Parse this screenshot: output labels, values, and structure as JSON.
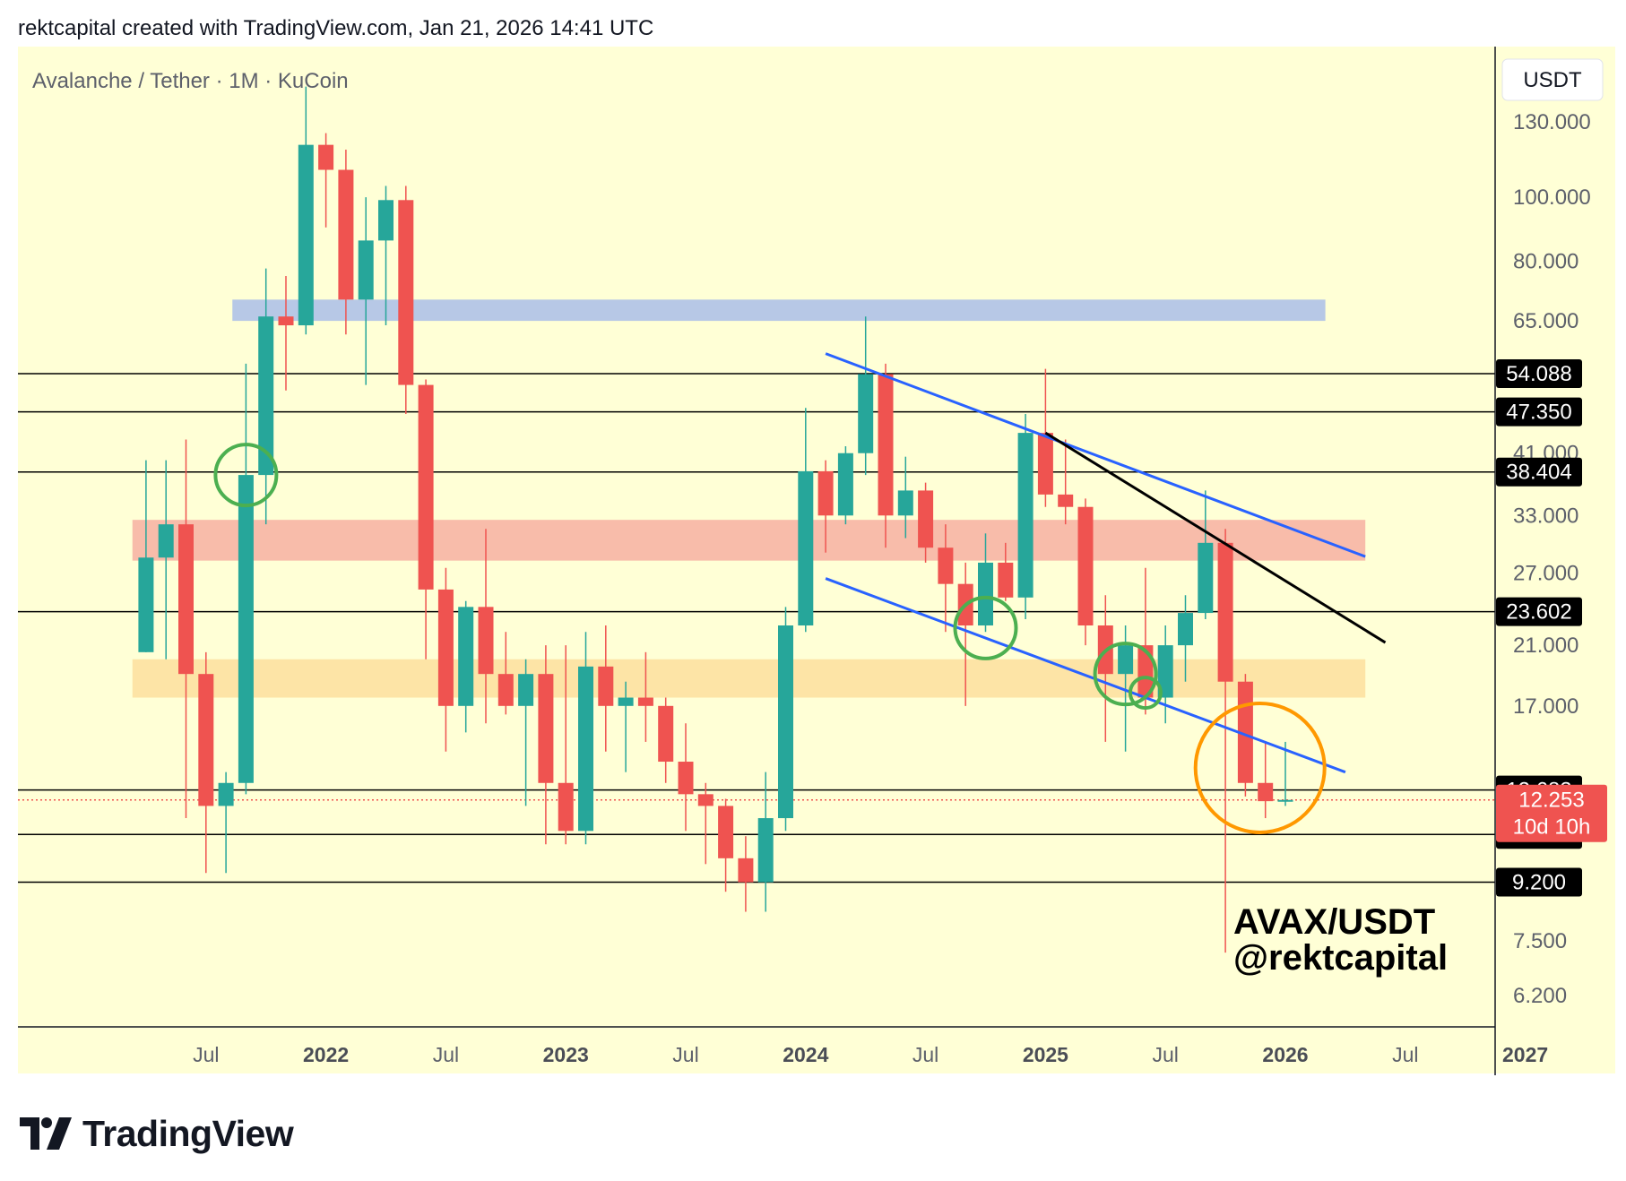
{
  "caption": "rektcapital created with TradingView.com, Jan 21, 2026 14:41 UTC",
  "brand": "TradingView",
  "chart_data": {
    "type": "candlestick",
    "title": "Avalanche / Tether · 1M · KuCoin",
    "currency_label": "USDT",
    "y_scale": "log",
    "ylim": [
      5.5,
      160
    ],
    "y_ticks": [
      "130.000",
      "100.000",
      "80.000",
      "65.000",
      "41.000",
      "33.000",
      "27.000",
      "21.000",
      "17.000",
      "7.500",
      "6.200"
    ],
    "x_ticks": [
      {
        "label": "Jul",
        "bold": false,
        "month": "2021-07"
      },
      {
        "label": "2022",
        "bold": true,
        "month": "2022-01"
      },
      {
        "label": "Jul",
        "bold": false,
        "month": "2022-07"
      },
      {
        "label": "2023",
        "bold": true,
        "month": "2023-01"
      },
      {
        "label": "Jul",
        "bold": false,
        "month": "2023-07"
      },
      {
        "label": "2024",
        "bold": true,
        "month": "2024-01"
      },
      {
        "label": "Jul",
        "bold": false,
        "month": "2024-07"
      },
      {
        "label": "2025",
        "bold": true,
        "month": "2025-01"
      },
      {
        "label": "Jul",
        "bold": false,
        "month": "2025-07"
      },
      {
        "label": "2026",
        "bold": true,
        "month": "2026-01"
      },
      {
        "label": "Jul",
        "bold": false,
        "month": "2026-07"
      },
      {
        "label": "2027",
        "bold": true,
        "month": "2027-01"
      }
    ],
    "candles": [
      {
        "month": "2021-04",
        "open": 20.5,
        "high": 40,
        "low": 20.5,
        "close": 28.5
      },
      {
        "month": "2021-05",
        "open": 28.5,
        "high": 40,
        "low": 20,
        "close": 32
      },
      {
        "month": "2021-06",
        "open": 32,
        "high": 43,
        "low": 11.5,
        "close": 19
      },
      {
        "month": "2021-07",
        "open": 19,
        "high": 20.5,
        "low": 9.5,
        "close": 12
      },
      {
        "month": "2021-08",
        "open": 12,
        "high": 13.5,
        "low": 9.5,
        "close": 13
      },
      {
        "month": "2021-09",
        "open": 13,
        "high": 56,
        "low": 12.5,
        "close": 38
      },
      {
        "month": "2021-10",
        "open": 38,
        "high": 78,
        "low": 32,
        "close": 66
      },
      {
        "month": "2021-11",
        "open": 66,
        "high": 76,
        "low": 51,
        "close": 64
      },
      {
        "month": "2021-12",
        "open": 64,
        "high": 147,
        "low": 62,
        "close": 120
      },
      {
        "month": "2022-01",
        "open": 120,
        "high": 125,
        "low": 90,
        "close": 110
      },
      {
        "month": "2022-02",
        "open": 110,
        "high": 118,
        "low": 62,
        "close": 70
      },
      {
        "month": "2022-03",
        "open": 70,
        "high": 100,
        "low": 52,
        "close": 86
      },
      {
        "month": "2022-04",
        "open": 86,
        "high": 104,
        "low": 64,
        "close": 99
      },
      {
        "month": "2022-05",
        "open": 99,
        "high": 104,
        "low": 47,
        "close": 52
      },
      {
        "month": "2022-06",
        "open": 52,
        "high": 53,
        "low": 20,
        "close": 25.5
      },
      {
        "month": "2022-07",
        "open": 25.5,
        "high": 27.5,
        "low": 14.5,
        "close": 17
      },
      {
        "month": "2022-08",
        "open": 17,
        "high": 24.5,
        "low": 15.5,
        "close": 24
      },
      {
        "month": "2022-09",
        "open": 24,
        "high": 31.5,
        "low": 16,
        "close": 19
      },
      {
        "month": "2022-10",
        "open": 19,
        "high": 22,
        "low": 16.5,
        "close": 17
      },
      {
        "month": "2022-11",
        "open": 17,
        "high": 20,
        "low": 12,
        "close": 19
      },
      {
        "month": "2022-12",
        "open": 19,
        "high": 21,
        "low": 10.5,
        "close": 13
      },
      {
        "month": "2023-01",
        "open": 13,
        "high": 21,
        "low": 10.5,
        "close": 11
      },
      {
        "month": "2023-02",
        "open": 11,
        "high": 22,
        "low": 10.5,
        "close": 19.5
      },
      {
        "month": "2023-03",
        "open": 19.5,
        "high": 22.5,
        "low": 14.5,
        "close": 17
      },
      {
        "month": "2023-04",
        "open": 17,
        "high": 18.5,
        "low": 13.5,
        "close": 17.5
      },
      {
        "month": "2023-05",
        "open": 17.5,
        "high": 20.5,
        "low": 15,
        "close": 17
      },
      {
        "month": "2023-06",
        "open": 17,
        "high": 17.5,
        "low": 13,
        "close": 14
      },
      {
        "month": "2023-07",
        "open": 14,
        "high": 16,
        "low": 11,
        "close": 12.5
      },
      {
        "month": "2023-08",
        "open": 12.5,
        "high": 13,
        "low": 9.8,
        "close": 12
      },
      {
        "month": "2023-09",
        "open": 12,
        "high": 12.3,
        "low": 8.9,
        "close": 10
      },
      {
        "month": "2023-10",
        "open": 10,
        "high": 10.8,
        "low": 8.3,
        "close": 9.2
      },
      {
        "month": "2023-11",
        "open": 9.2,
        "high": 13.5,
        "low": 8.3,
        "close": 11.5
      },
      {
        "month": "2023-12",
        "open": 11.5,
        "high": 24,
        "low": 11,
        "close": 22.5
      },
      {
        "month": "2024-01",
        "open": 22.5,
        "high": 48,
        "low": 22,
        "close": 38.5
      },
      {
        "month": "2024-02",
        "open": 38.5,
        "high": 40,
        "low": 29,
        "close": 33
      },
      {
        "month": "2024-03",
        "open": 33,
        "high": 42,
        "low": 32,
        "close": 41
      },
      {
        "month": "2024-04",
        "open": 41,
        "high": 66,
        "low": 38,
        "close": 54
      },
      {
        "month": "2024-05",
        "open": 54,
        "high": 56,
        "low": 29.5,
        "close": 33
      },
      {
        "month": "2024-06",
        "open": 33,
        "high": 40.5,
        "low": 30.5,
        "close": 36
      },
      {
        "month": "2024-07",
        "open": 36,
        "high": 37,
        "low": 28,
        "close": 29.5
      },
      {
        "month": "2024-08",
        "open": 29.5,
        "high": 32,
        "low": 22,
        "close": 26
      },
      {
        "month": "2024-09",
        "open": 26,
        "high": 28,
        "low": 17,
        "close": 22.5
      },
      {
        "month": "2024-10",
        "open": 22.5,
        "high": 31,
        "low": 22,
        "close": 28
      },
      {
        "month": "2024-11",
        "open": 28,
        "high": 30,
        "low": 24.5,
        "close": 24.8
      },
      {
        "month": "2024-12",
        "open": 24.8,
        "high": 47,
        "low": 23,
        "close": 44
      },
      {
        "month": "2025-01",
        "open": 44,
        "high": 55,
        "low": 34,
        "close": 35.5
      },
      {
        "month": "2025-02",
        "open": 35.5,
        "high": 43,
        "low": 32,
        "close": 34
      },
      {
        "month": "2025-03",
        "open": 34,
        "high": 35,
        "low": 21,
        "close": 22.5
      },
      {
        "month": "2025-04",
        "open": 22.5,
        "high": 25,
        "low": 15,
        "close": 19
      },
      {
        "month": "2025-05",
        "open": 19,
        "high": 22.5,
        "low": 14.5,
        "close": 21
      },
      {
        "month": "2025-06",
        "open": 21,
        "high": 27.5,
        "low": 16.5,
        "close": 17.5
      },
      {
        "month": "2025-07",
        "open": 17.5,
        "high": 22.5,
        "low": 16,
        "close": 21
      },
      {
        "month": "2025-08",
        "open": 21,
        "high": 25,
        "low": 18.5,
        "close": 23.5
      },
      {
        "month": "2025-09",
        "open": 23.5,
        "high": 36,
        "low": 23,
        "close": 30
      },
      {
        "month": "2025-10",
        "open": 30,
        "high": 31.5,
        "low": 7.2,
        "close": 18.5
      },
      {
        "month": "2025-11",
        "open": 18.5,
        "high": 19,
        "low": 12.4,
        "close": 13
      },
      {
        "month": "2025-12",
        "open": 13,
        "high": 15,
        "low": 11.5,
        "close": 12.2
      },
      {
        "month": "2026-01",
        "open": 12.2,
        "high": 15,
        "low": 12,
        "close": 12.253
      }
    ],
    "levels": [
      "54.088",
      "47.350",
      "38.404",
      "23.602",
      "12.683",
      "10.864",
      "9.200"
    ],
    "current_price": {
      "value": "12.253",
      "countdown": "10d 10h"
    },
    "zones": [
      {
        "from_month": "2021-09",
        "to_month": "2026-03",
        "low": 65,
        "high": 70,
        "color": "#b7c8e6"
      },
      {
        "from_month": "2021-04",
        "to_month": "2026-05",
        "low": 28.2,
        "high": 32.5,
        "color": "#f8bcaa"
      },
      {
        "from_month": "2021-04",
        "to_month": "2026-05",
        "low": 17.5,
        "high": 20,
        "color": "#fde4a6"
      }
    ],
    "trendlines": [
      {
        "from_month": "2024-02",
        "from_price": 58,
        "to_month": "2026-05",
        "to_price": 28.6,
        "color": "#2962ff"
      },
      {
        "from_month": "2024-02",
        "from_price": 26.5,
        "to_month": "2026-04",
        "to_price": 13.5,
        "color": "#2962ff"
      },
      {
        "from_month": "2025-01",
        "from_price": 44,
        "to_month": "2026-06",
        "to_price": 21.2,
        "color": "#000000"
      }
    ],
    "circles": [
      {
        "month": "2021-09",
        "price": 38,
        "color": "#4caf50",
        "size": "small"
      },
      {
        "month": "2024-10",
        "price": 22.3,
        "color": "#4caf50",
        "size": "small"
      },
      {
        "month": "2025-05",
        "price": 19,
        "color": "#4caf50",
        "size": "small"
      },
      {
        "month": "2025-06",
        "price": 17.8,
        "color": "#4caf50",
        "size": "small"
      },
      {
        "month": "2025-12",
        "price": 13.7,
        "color": "#ff9800",
        "size": "large"
      }
    ],
    "colors": {
      "up": "#26a69a",
      "down": "#ef5350",
      "background": "#ffffd6"
    },
    "annotation": [
      "AVAX/USDT",
      "@rektcapital"
    ]
  }
}
